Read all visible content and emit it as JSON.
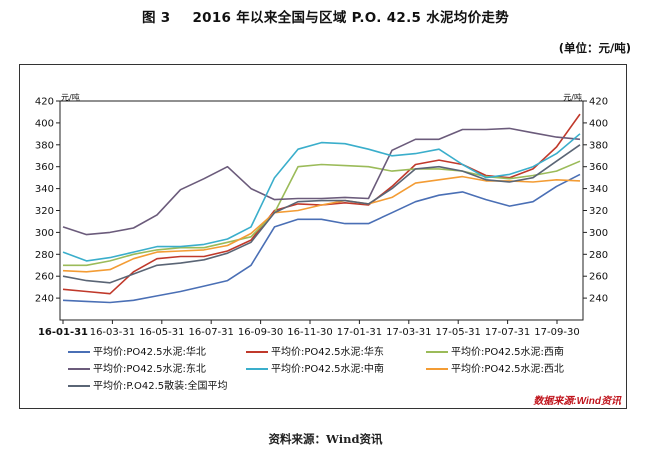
{
  "header": {
    "figure_number": "图 3",
    "title": "2016 年以来全国与区域 P.O. 42.5 水泥均价走势",
    "unit": "(单位：元/吨)"
  },
  "footer": {
    "source": "资料来源：Wind资讯",
    "watermark": "数据来源:Wind资讯"
  },
  "chart_data": {
    "type": "line",
    "title": "",
    "xlabel": "",
    "ylabel": "元/吨",
    "ylabel_right": "元/吨",
    "ylim": [
      220,
      420
    ],
    "yticks": [
      240,
      260,
      280,
      300,
      320,
      340,
      360,
      380,
      400,
      420
    ],
    "xlim": [
      "2016-01-31",
      "2017-11-30"
    ],
    "x_tick_labels": [
      "16-01-31",
      "16-03-31",
      "16-05-31",
      "16-07-31",
      "16-09-30",
      "16-11-30",
      "17-01-31",
      "17-03-31",
      "17-05-31",
      "17-07-31",
      "17-09-30"
    ],
    "grid": false,
    "legend_position": "bottom",
    "x": [
      "2016-01",
      "2016-02",
      "2016-03",
      "2016-04",
      "2016-05",
      "2016-06",
      "2016-07",
      "2016-08",
      "2016-09",
      "2016-10",
      "2016-11",
      "2016-12",
      "2017-01",
      "2017-02",
      "2017-03",
      "2017-04",
      "2017-05",
      "2017-06",
      "2017-07",
      "2017-08",
      "2017-09",
      "2017-10",
      "2017-11"
    ],
    "series": [
      {
        "name": "平均价:PO42.5水泥:华北",
        "color": "#4a6fb5",
        "values": [
          238,
          237,
          236,
          238,
          242,
          246,
          251,
          256,
          270,
          305,
          312,
          312,
          308,
          308,
          318,
          328,
          334,
          337,
          330,
          324,
          328,
          342,
          353
        ]
      },
      {
        "name": "平均价:PO42.5水泥:华东",
        "color": "#c0392b",
        "values": [
          248,
          246,
          244,
          264,
          276,
          278,
          278,
          283,
          293,
          320,
          326,
          325,
          327,
          325,
          342,
          362,
          366,
          362,
          352,
          350,
          358,
          378,
          408
        ]
      },
      {
        "name": "平均价:PO42.5水泥:西南",
        "color": "#9bbb59",
        "values": [
          270,
          270,
          274,
          280,
          284,
          286,
          286,
          291,
          296,
          318,
          360,
          362,
          361,
          360,
          356,
          358,
          358,
          356,
          351,
          349,
          352,
          356,
          365
        ]
      },
      {
        "name": "平均价:PO42.5水泥:东北",
        "color": "#6b5b7b",
        "values": [
          305,
          298,
          300,
          304,
          316,
          339,
          349,
          360,
          340,
          330,
          331,
          331,
          332,
          331,
          375,
          385,
          385,
          394,
          394,
          395,
          391,
          387,
          385
        ]
      },
      {
        "name": "平均价:PO42.5水泥:中南",
        "color": "#3aaecb",
        "values": [
          282,
          274,
          277,
          282,
          287,
          287,
          289,
          294,
          305,
          350,
          376,
          382,
          381,
          376,
          370,
          372,
          376,
          362,
          350,
          353,
          360,
          372,
          390
        ]
      },
      {
        "name": "平均价:PO42.5水泥:西北",
        "color": "#f39c34",
        "values": [
          265,
          264,
          266,
          276,
          282,
          283,
          284,
          288,
          299,
          318,
          320,
          325,
          329,
          326,
          332,
          345,
          348,
          351,
          347,
          347,
          346,
          348,
          347
        ]
      },
      {
        "name": "平均价:P.O42.5散装:全国平均",
        "color": "#5a6575",
        "values": [
          260,
          256,
          254,
          262,
          270,
          272,
          275,
          281,
          291,
          318,
          328,
          329,
          329,
          326,
          340,
          358,
          360,
          356,
          348,
          346,
          350,
          365,
          380
        ]
      }
    ]
  }
}
